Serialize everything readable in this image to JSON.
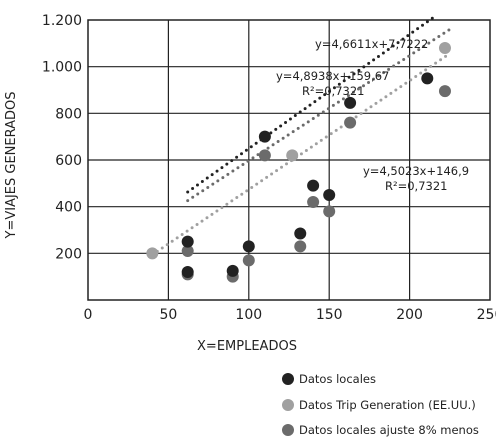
{
  "chart_data": {
    "type": "scatter",
    "title": "",
    "xlabel": "X=EMPLEADOS",
    "ylabel": "Y=VIAJES GENERADOS",
    "xlim": [
      0,
      250
    ],
    "ylim": [
      0,
      1200
    ],
    "x_ticks": [
      "0",
      "50",
      "100",
      "150",
      "200",
      "250"
    ],
    "y_ticks": [
      "200",
      "400",
      "600",
      "800",
      "1.000",
      "1.200"
    ],
    "grid": true,
    "legend_position": "bottom-right",
    "series": [
      {
        "name": "Datos locales",
        "color": "#222222",
        "points": [
          {
            "x": 62,
            "y": 250
          },
          {
            "x": 62,
            "y": 120
          },
          {
            "x": 90,
            "y": 125
          },
          {
            "x": 100,
            "y": 230
          },
          {
            "x": 110,
            "y": 700
          },
          {
            "x": 132,
            "y": 285
          },
          {
            "x": 140,
            "y": 490
          },
          {
            "x": 150,
            "y": 450
          },
          {
            "x": 163,
            "y": 845
          },
          {
            "x": 211,
            "y": 950
          }
        ]
      },
      {
        "name": "Datos Trip Generation (EE.UU.)",
        "color": "#a0a0a0",
        "points": [
          {
            "x": 40,
            "y": 200
          },
          {
            "x": 127,
            "y": 620
          },
          {
            "x": 222,
            "y": 1080
          }
        ]
      },
      {
        "name": "Datos locales ajuste 8% menos",
        "color": "#6b6b6b",
        "points": [
          {
            "x": 62,
            "y": 210
          },
          {
            "x": 62,
            "y": 110
          },
          {
            "x": 90,
            "y": 100
          },
          {
            "x": 100,
            "y": 170
          },
          {
            "x": 110,
            "y": 620
          },
          {
            "x": 132,
            "y": 230
          },
          {
            "x": 140,
            "y": 420
          },
          {
            "x": 150,
            "y": 380
          },
          {
            "x": 163,
            "y": 760
          },
          {
            "x": 222,
            "y": 895
          }
        ]
      }
    ],
    "trendlines": [
      {
        "series": "Datos locales",
        "slope": 4.8938,
        "intercept": 159.67,
        "x_range": [
          62,
          215
        ],
        "color": "#222222"
      },
      {
        "series": "Datos Trip Generation (EE.UU.)",
        "slope": 4.6611,
        "intercept": 7.7222,
        "x_range": [
          40,
          224
        ],
        "color": "#a0a0a0"
      },
      {
        "series": "Datos locales ajuste 8% menos",
        "slope": 4.5023,
        "intercept": 146.9,
        "x_range": [
          62,
          225
        ],
        "color": "#6b6b6b"
      }
    ],
    "annotations": {
      "eq_trip": "y=4,6611x+7,7222",
      "eq_local": "y=4,8938x+159,67",
      "r2_local": "R²=0,7321",
      "eq_adjusted": "y=4,5023x+146,9",
      "r2_adjusted": "R²=0,7321"
    }
  }
}
